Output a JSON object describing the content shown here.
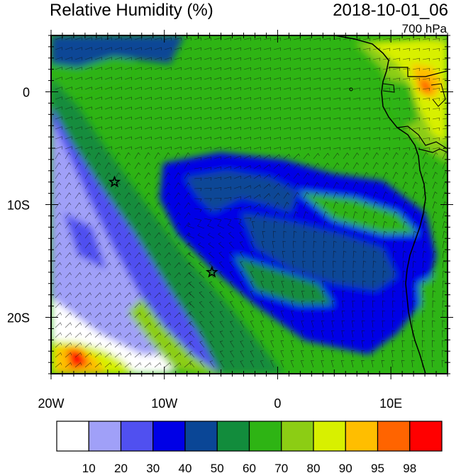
{
  "title": "Relative Humidity (%)",
  "datetime": "2018-10-01_06",
  "level": "700 hPa",
  "map": {
    "lon_range": [
      -20,
      15
    ],
    "lat_range": [
      -25,
      5
    ],
    "lon_ticks": [
      {
        "value": -20,
        "label": "20W"
      },
      {
        "value": -10,
        "label": "10W"
      },
      {
        "value": 0,
        "label": "0"
      },
      {
        "value": 10,
        "label": "10E"
      }
    ],
    "lat_ticks": [
      {
        "value": 0,
        "label": "0"
      },
      {
        "value": -10,
        "label": "10S"
      },
      {
        "value": -20,
        "label": "20S"
      }
    ],
    "markers": [
      {
        "lon": -14.4,
        "lat": -8.0,
        "symbol": "star"
      },
      {
        "lon": -5.8,
        "lat": -16.0,
        "symbol": "star"
      }
    ],
    "wind_barbs": true,
    "coastline": "west-africa"
  },
  "colorbar": {
    "colors": [
      "#ffffff",
      "#a0a0f8",
      "#5050f0",
      "#0000e6",
      "#0a4696",
      "#128c3c",
      "#2eb414",
      "#8ccd14",
      "#d8f000",
      "#ffbe00",
      "#ff6400",
      "#ff0000"
    ],
    "labels": [
      "10",
      "20",
      "30",
      "40",
      "50",
      "60",
      "70",
      "80",
      "90",
      "95",
      "98"
    ]
  }
}
